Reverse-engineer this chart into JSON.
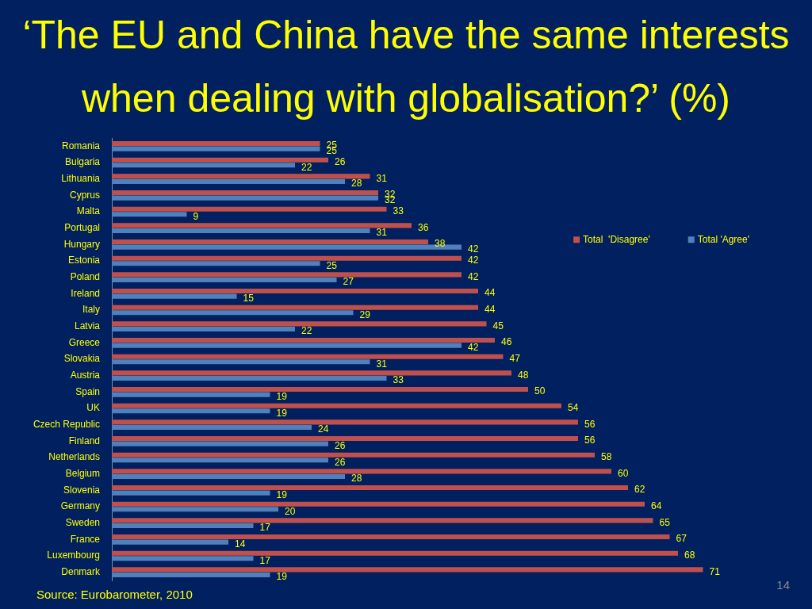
{
  "chart_data": {
    "type": "bar",
    "orientation": "horizontal",
    "title": "‘The EU and China have the same interests when dealing with globalisation?’ (%)",
    "categories": [
      "Romania",
      "Bulgaria",
      "Lithuania",
      "Cyprus",
      "Malta",
      "Portugal",
      "Hungary",
      "Estonia",
      "Poland",
      "Ireland",
      "Italy",
      "Latvia",
      "Greece",
      "Slovakia",
      "Austria",
      "Spain",
      "UK",
      "Czech Republic",
      "Finland",
      "Netherlands",
      "Belgium",
      "Slovenia",
      "Germany",
      "Sweden",
      "France",
      "Luxembourg",
      "Denmark"
    ],
    "series": [
      {
        "name": "Total  'Disagree'",
        "color": "#c0504d",
        "values": [
          25,
          26,
          31,
          32,
          33,
          36,
          38,
          42,
          42,
          44,
          44,
          45,
          46,
          47,
          48,
          50,
          54,
          56,
          56,
          58,
          60,
          62,
          64,
          65,
          67,
          68,
          71
        ]
      },
      {
        "name": "Total 'Agree'",
        "color": "#4f81bd",
        "values": [
          25,
          22,
          28,
          32,
          9,
          31,
          42,
          25,
          27,
          15,
          29,
          22,
          42,
          31,
          33,
          19,
          19,
          24,
          26,
          26,
          28,
          19,
          20,
          17,
          14,
          17,
          19
        ]
      }
    ],
    "tick_labels": "y",
    "data_labels": true,
    "legend": "right",
    "annotations": [
      "Source: Eurobarometer, 2010",
      "14"
    ]
  }
}
